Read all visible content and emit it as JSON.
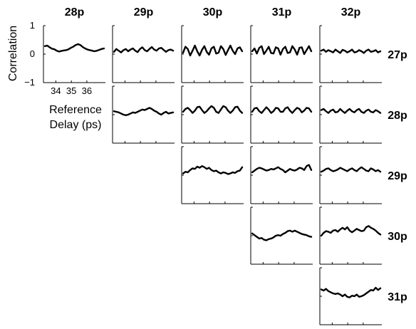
{
  "chart_data": {
    "type": "line",
    "column_labels": [
      "28p",
      "29p",
      "30p",
      "31p",
      "32p"
    ],
    "row_labels": [
      "27p",
      "28p",
      "29p",
      "30p",
      "31p"
    ],
    "ylabel": "Correlation",
    "xlabel_lines": [
      "Reference",
      "Delay (ps)"
    ],
    "ylim": [
      -1,
      1
    ],
    "xlim": [
      33.2,
      37.2
    ],
    "yticks": [
      1,
      0,
      -1
    ],
    "yticklabels": [
      "1",
      "0",
      "−1"
    ],
    "xticks": [
      34,
      35,
      36
    ],
    "xticklabels": [
      "34",
      "35",
      "36"
    ],
    "panels": [
      {
        "row": 0,
        "col": 0,
        "series": [
          0.28,
          0.3,
          0.24,
          0.19,
          0.17,
          0.12,
          0.09,
          0.11,
          0.13,
          0.14,
          0.17,
          0.22,
          0.26,
          0.32,
          0.35,
          0.32,
          0.25,
          0.2,
          0.16,
          0.14,
          0.12,
          0.1,
          0.12,
          0.15,
          0.18,
          0.2
        ]
      },
      {
        "row": 0,
        "col": 1,
        "series": [
          0.08,
          0.18,
          0.12,
          0.06,
          0.14,
          0.18,
          0.1,
          0.16,
          0.2,
          0.12,
          0.07,
          0.18,
          0.24,
          0.14,
          0.1,
          0.18,
          0.25,
          0.16,
          0.12,
          0.2,
          0.22,
          0.15,
          0.08,
          0.14,
          0.16,
          0.12
        ]
      },
      {
        "row": 0,
        "col": 2,
        "series": [
          0.05,
          0.26,
          0.18,
          -0.05,
          0.12,
          0.3,
          0.1,
          -0.05,
          0.15,
          0.28,
          0.08,
          -0.02,
          0.2,
          0.26,
          0.02,
          0.05,
          0.28,
          0.18,
          -0.03,
          0.14,
          0.3,
          0.12,
          0.0,
          0.2,
          0.24,
          0.1
        ]
      },
      {
        "row": 0,
        "col": 3,
        "series": [
          0.1,
          0.2,
          0.02,
          0.22,
          0.28,
          0.0,
          0.12,
          0.26,
          0.04,
          0.02,
          0.24,
          0.2,
          -0.02,
          0.18,
          0.26,
          0.04,
          0.06,
          0.28,
          0.16,
          -0.02,
          0.22,
          0.24,
          0.0,
          0.14,
          0.28,
          0.1
        ]
      },
      {
        "row": 0,
        "col": 4,
        "series": [
          0.12,
          0.16,
          0.08,
          0.14,
          0.1,
          0.06,
          0.16,
          0.1,
          0.04,
          0.15,
          0.12,
          0.06,
          0.1,
          0.16,
          0.06,
          0.08,
          0.14,
          0.1,
          0.04,
          0.12,
          0.16,
          0.08,
          0.1,
          0.14,
          0.06,
          0.1
        ]
      },
      {
        "row": 1,
        "col": 1,
        "series": [
          0.12,
          0.1,
          0.08,
          0.04,
          0.0,
          -0.02,
          0.0,
          0.04,
          0.08,
          0.06,
          0.1,
          0.14,
          0.18,
          0.16,
          0.2,
          0.24,
          0.2,
          0.14,
          0.1,
          0.04,
          0.0,
          0.06,
          0.1,
          0.04,
          0.06,
          0.08
        ]
      },
      {
        "row": 1,
        "col": 2,
        "series": [
          0.1,
          0.2,
          0.24,
          0.16,
          0.06,
          0.14,
          0.26,
          0.28,
          0.16,
          0.06,
          0.12,
          0.22,
          0.3,
          0.24,
          0.1,
          0.06,
          0.18,
          0.3,
          0.26,
          0.14,
          0.06,
          0.14,
          0.26,
          0.28,
          0.14,
          0.06
        ]
      },
      {
        "row": 1,
        "col": 3,
        "series": [
          0.1,
          0.22,
          0.24,
          0.12,
          0.06,
          0.16,
          0.26,
          0.18,
          0.06,
          0.12,
          0.24,
          0.22,
          0.1,
          0.1,
          0.22,
          0.26,
          0.14,
          0.06,
          0.16,
          0.24,
          0.2,
          0.08,
          0.14,
          0.24,
          0.22,
          0.1
        ]
      },
      {
        "row": 1,
        "col": 4,
        "series": [
          0.16,
          0.2,
          0.12,
          0.06,
          0.14,
          0.18,
          0.08,
          0.1,
          0.2,
          0.12,
          0.06,
          0.14,
          0.2,
          0.12,
          0.08,
          0.16,
          0.2,
          0.1,
          0.06,
          0.14,
          0.18,
          0.1,
          0.08,
          0.16,
          0.12,
          0.06
        ]
      },
      {
        "row": 2,
        "col": 2,
        "series": [
          0.06,
          0.12,
          0.1,
          0.18,
          0.24,
          0.22,
          0.3,
          0.26,
          0.32,
          0.28,
          0.22,
          0.26,
          0.18,
          0.14,
          0.16,
          0.1,
          0.06,
          0.1,
          0.08,
          0.04,
          0.06,
          0.1,
          0.08,
          0.14,
          0.16,
          0.28
        ]
      },
      {
        "row": 2,
        "col": 3,
        "series": [
          0.1,
          0.16,
          0.22,
          0.26,
          0.24,
          0.2,
          0.16,
          0.18,
          0.22,
          0.2,
          0.24,
          0.28,
          0.22,
          0.18,
          0.1,
          0.16,
          0.22,
          0.18,
          0.16,
          0.2,
          0.26,
          0.24,
          0.18,
          0.32,
          0.36,
          0.18
        ]
      },
      {
        "row": 2,
        "col": 4,
        "series": [
          0.12,
          0.16,
          0.22,
          0.24,
          0.18,
          0.14,
          0.16,
          0.2,
          0.26,
          0.22,
          0.18,
          0.14,
          0.2,
          0.24,
          0.18,
          0.14,
          0.22,
          0.28,
          0.22,
          0.16,
          0.14,
          0.24,
          0.2,
          0.14,
          0.18,
          0.12
        ]
      },
      {
        "row": 3,
        "col": 3,
        "series": [
          0.08,
          0.02,
          -0.04,
          -0.1,
          -0.08,
          -0.14,
          -0.16,
          -0.12,
          -0.1,
          -0.06,
          0.0,
          0.02,
          0.0,
          0.06,
          0.1,
          0.16,
          0.18,
          0.14,
          0.18,
          0.14,
          0.1,
          0.06,
          0.04,
          0.02,
          -0.02,
          -0.04
        ]
      },
      {
        "row": 3,
        "col": 4,
        "series": [
          0.0,
          0.1,
          0.16,
          0.14,
          0.1,
          0.18,
          0.2,
          0.14,
          0.22,
          0.28,
          0.22,
          0.3,
          0.18,
          0.12,
          0.18,
          0.24,
          0.2,
          0.16,
          0.18,
          0.3,
          0.34,
          0.28,
          0.24,
          0.18,
          0.1,
          0.04
        ]
      },
      {
        "row": 4,
        "col": 4,
        "series": [
          0.24,
          0.2,
          0.26,
          0.18,
          0.14,
          0.1,
          0.08,
          0.1,
          0.06,
          0.0,
          0.06,
          -0.02,
          -0.04,
          0.02,
          0.0,
          0.06,
          -0.02,
          0.0,
          0.04,
          0.1,
          0.16,
          0.22,
          0.2,
          0.3,
          0.22,
          0.28
        ]
      }
    ]
  }
}
